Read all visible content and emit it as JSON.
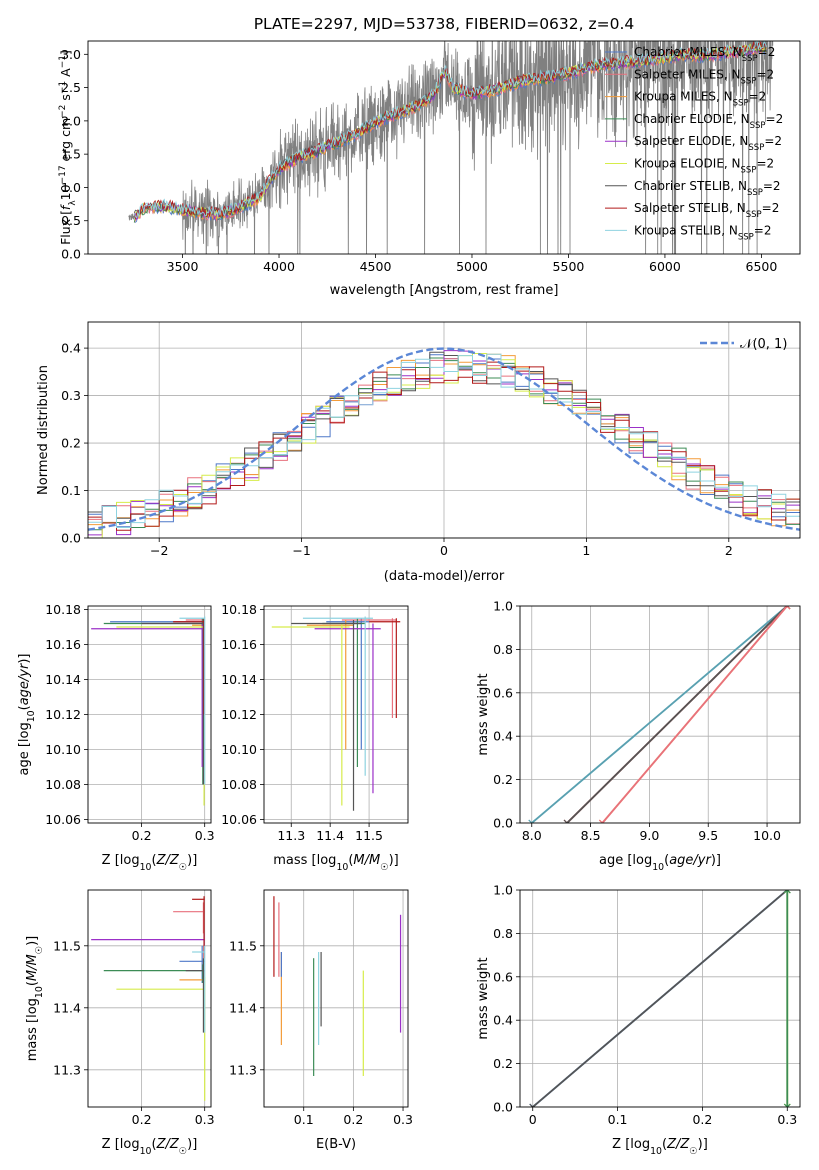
{
  "figure": {
    "title": "PLATE=2297, MJD=53738, FIBERID=0632, z=0.4"
  },
  "series_legend": [
    {
      "label": "Chabrier MILES, N",
      "sub": "SSP",
      "suffix": "=2",
      "color": "#4f78c8"
    },
    {
      "label": "Salpeter MILES, N",
      "sub": "SSP",
      "suffix": "=2",
      "color": "#e8717d"
    },
    {
      "label": "Kroupa MILES, N",
      "sub": "SSP",
      "suffix": "=2",
      "color": "#f39c3a"
    },
    {
      "label": "Chabrier ELODIE, N",
      "sub": "SSP",
      "suffix": "=2",
      "color": "#3c8c56"
    },
    {
      "label": "Salpeter ELODIE, N",
      "sub": "SSP",
      "suffix": "=2",
      "color": "#9b30c8"
    },
    {
      "label": "Kroupa ELODIE, N",
      "sub": "SSP",
      "suffix": "=2",
      "color": "#d6ec4a"
    },
    {
      "label": "Chabrier STELIB, N",
      "sub": "SSP",
      "suffix": "=2",
      "color": "#555555"
    },
    {
      "label": "Salpeter STELIB, N",
      "sub": "SSP",
      "suffix": "=2",
      "color": "#b21a1a"
    },
    {
      "label": "Kroupa STELIB, N",
      "sub": "SSP",
      "suffix": "=2",
      "color": "#8fd3e0"
    }
  ],
  "chart_data": [
    {
      "id": "spectrum",
      "type": "line",
      "xlabel": "wavelength [Angstrom, rest frame]",
      "ylabel": "Flux [f_λ 10^-17 erg cm^-2 s^-1 A^-1]",
      "ylabel_parts": {
        "pre": "Flux [",
        "f": "f",
        "fsub": "λ",
        "mid": "10",
        "exp1": "−17",
        "unit": " erg cm",
        "exp2": "−2",
        "unit2": " s",
        "exp3": "−1",
        "unit3": " A",
        "exp4": "−1",
        "post": "]"
      },
      "xlim": [
        3010,
        6700
      ],
      "ylim": [
        0,
        3.2
      ],
      "xticks": [
        3500,
        4000,
        4500,
        5000,
        5500,
        6000,
        6500
      ],
      "yticks": [
        "0.0",
        "0.5",
        "1.0",
        "1.5",
        "2.0",
        "2.5",
        "3.0"
      ],
      "data_color": "#808080",
      "model_anchor_x": [
        3250,
        3300,
        3400,
        3500,
        3600,
        3700,
        3800,
        3900,
        3950,
        4000,
        4100,
        4200,
        4300,
        4400,
        4500,
        4600,
        4700,
        4800,
        4860,
        4900,
        5000,
        5100,
        5200,
        5300,
        5400,
        5500,
        5600,
        5700,
        5800,
        5900,
        6000,
        6100,
        6200,
        6300,
        6400,
        6500
      ],
      "model_anchor_y": [
        0.55,
        0.68,
        0.72,
        0.66,
        0.62,
        0.6,
        0.7,
        0.85,
        1.1,
        1.28,
        1.45,
        1.55,
        1.68,
        1.8,
        1.98,
        2.1,
        2.2,
        2.38,
        2.75,
        2.5,
        2.4,
        2.45,
        2.55,
        2.62,
        2.65,
        2.72,
        2.8,
        2.85,
        2.88,
        2.9,
        2.95,
        3.0,
        2.98,
        3.02,
        3.05,
        3.1
      ]
    },
    {
      "id": "residuals",
      "type": "line",
      "xlabel": "(data-model)/error",
      "ylabel": "Normed distribution",
      "xlim": [
        -2.5,
        2.5
      ],
      "ylim": [
        0,
        0.455
      ],
      "xticks": [
        -2,
        -1,
        0,
        1,
        2
      ],
      "yticks": [
        "0.0",
        "0.1",
        "0.2",
        "0.3",
        "0.4"
      ],
      "reference_label": "𝒩(0, 1)",
      "reference_color": "#5b87d6",
      "histogram_bin_width": 0.1
    },
    {
      "id": "age-vs-Z",
      "type": "scatter",
      "xlabel": "Z [log10(Z/Z☉)]",
      "ylabel": "age  [log10(age/yr)]",
      "xlim": [
        0.115,
        0.31
      ],
      "ylim": [
        10.058,
        10.182
      ],
      "xticks": [
        0.2,
        0.3
      ],
      "yticks": [
        "10.06",
        "10.08",
        "10.10",
        "10.12",
        "10.14",
        "10.16",
        "10.18"
      ],
      "points": [
        {
          "x": 0.296,
          "xmin": 0.15,
          "xmax": 0.3,
          "y": 10.173,
          "ymin": 10.16,
          "ymax": 10.175,
          "color": "#4f78c8"
        },
        {
          "x": 0.298,
          "xmin": 0.27,
          "xmax": 0.3,
          "y": 10.174,
          "ymin": 10.1,
          "ymax": 10.175,
          "color": "#e8717d"
        },
        {
          "x": 0.299,
          "xmin": 0.28,
          "xmax": 0.3,
          "y": 10.171,
          "ymin": 10.09,
          "ymax": 10.174,
          "color": "#f39c3a"
        },
        {
          "x": 0.297,
          "xmin": 0.14,
          "xmax": 0.3,
          "y": 10.172,
          "ymin": 10.08,
          "ymax": 10.175,
          "color": "#3c8c56"
        },
        {
          "x": 0.296,
          "xmin": 0.12,
          "xmax": 0.3,
          "y": 10.169,
          "ymin": 10.09,
          "ymax": 10.172,
          "color": "#9b30c8"
        },
        {
          "x": 0.299,
          "xmin": 0.16,
          "xmax": 0.3,
          "y": 10.17,
          "ymin": 10.068,
          "ymax": 10.172,
          "color": "#d6ec4a"
        },
        {
          "x": 0.298,
          "xmin": 0.2,
          "xmax": 0.3,
          "y": 10.172,
          "ymin": 10.08,
          "ymax": 10.174,
          "color": "#555555"
        },
        {
          "x": 0.299,
          "xmin": 0.25,
          "xmax": 0.3,
          "y": 10.173,
          "ymin": 10.12,
          "ymax": 10.175,
          "color": "#b21a1a"
        },
        {
          "x": 0.3,
          "xmin": 0.26,
          "xmax": 0.3,
          "y": 10.175,
          "ymin": 10.08,
          "ymax": 10.176,
          "color": "#8fd3e0"
        }
      ]
    },
    {
      "id": "age-vs-mass",
      "type": "scatter",
      "xlabel": "mass [log10(M/M☉)]",
      "ylabel": "",
      "xlim": [
        11.23,
        11.6
      ],
      "ylim": [
        10.058,
        10.182
      ],
      "xticks": [
        11.3,
        11.4,
        11.5
      ],
      "yticks": [
        "10.06",
        "10.08",
        "10.10",
        "10.12",
        "10.14",
        "10.16",
        "10.18"
      ],
      "points": [
        {
          "x": 11.48,
          "xmin": 11.39,
          "xmax": 11.5,
          "y": 10.173,
          "ymin": 10.1,
          "ymax": 10.175,
          "color": "#4f78c8"
        },
        {
          "x": 11.56,
          "xmin": 11.43,
          "xmax": 11.57,
          "y": 10.174,
          "ymin": 10.118,
          "ymax": 10.175,
          "color": "#e8717d"
        },
        {
          "x": 11.44,
          "xmin": 11.34,
          "xmax": 11.46,
          "y": 10.171,
          "ymin": 10.1,
          "ymax": 10.174,
          "color": "#f39c3a"
        },
        {
          "x": 11.47,
          "xmin": 11.38,
          "xmax": 11.49,
          "y": 10.172,
          "ymin": 10.09,
          "ymax": 10.175,
          "color": "#3c8c56"
        },
        {
          "x": 11.51,
          "xmin": 11.36,
          "xmax": 11.53,
          "y": 10.169,
          "ymin": 10.075,
          "ymax": 10.172,
          "color": "#9b30c8"
        },
        {
          "x": 11.43,
          "xmin": 11.25,
          "xmax": 11.45,
          "y": 10.17,
          "ymin": 10.068,
          "ymax": 10.172,
          "color": "#d6ec4a"
        },
        {
          "x": 11.46,
          "xmin": 11.3,
          "xmax": 11.48,
          "y": 10.172,
          "ymin": 10.065,
          "ymax": 10.174,
          "color": "#555555"
        },
        {
          "x": 11.57,
          "xmin": 11.5,
          "xmax": 11.58,
          "y": 10.173,
          "ymin": 10.118,
          "ymax": 10.175,
          "color": "#b21a1a"
        },
        {
          "x": 11.49,
          "xmin": 11.33,
          "xmax": 11.51,
          "y": 10.175,
          "ymin": 10.085,
          "ymax": 10.176,
          "color": "#8fd3e0"
        }
      ]
    },
    {
      "id": "mass-weight-vs-age",
      "type": "line",
      "xlabel": "age  [log10(age/yr)]",
      "ylabel": "mass weight",
      "xlim": [
        7.9,
        10.28
      ],
      "ylim": [
        0,
        1.0
      ],
      "xticks": [
        8.0,
        8.5,
        9.0,
        9.5,
        10.0
      ],
      "xtick_labels": [
        "8.0",
        "8.5",
        "9.0",
        "9.5",
        "10.0"
      ],
      "yticks": [
        "0.0",
        "0.2",
        "0.4",
        "0.6",
        "0.8",
        "1.0"
      ],
      "series": [
        {
          "x": [
            8.0,
            10.17
          ],
          "y": [
            0,
            1
          ],
          "color": "#8fd3e0"
        },
        {
          "x": [
            8.0,
            10.17
          ],
          "y": [
            0,
            1
          ],
          "color": "#5aa0b0"
        },
        {
          "x": [
            8.3,
            10.17
          ],
          "y": [
            0,
            1
          ],
          "color": "#b21a1a"
        },
        {
          "x": [
            8.3,
            10.17
          ],
          "y": [
            0,
            1
          ],
          "color": "#555555"
        },
        {
          "x": [
            8.6,
            10.17
          ],
          "y": [
            0,
            1
          ],
          "color": "#f39c3a"
        },
        {
          "x": [
            8.6,
            10.17
          ],
          "y": [
            0,
            1
          ],
          "color": "#e8717d"
        }
      ]
    },
    {
      "id": "mass-vs-Z",
      "type": "scatter",
      "xlabel": "Z [log10(Z/Z☉)]",
      "ylabel": "mass [log10(M/M☉)]",
      "xlim": [
        0.115,
        0.31
      ],
      "ylim": [
        11.24,
        11.59
      ],
      "xticks": [
        0.2,
        0.3
      ],
      "yticks": [
        "11.3",
        "11.4",
        "11.5"
      ],
      "points": [
        {
          "x": 0.296,
          "xmin": 0.26,
          "xmax": 0.3,
          "y": 11.475,
          "ymin": 11.44,
          "ymax": 11.5,
          "color": "#4f78c8"
        },
        {
          "x": 0.298,
          "xmin": 0.25,
          "xmax": 0.3,
          "y": 11.555,
          "ymin": 11.52,
          "ymax": 11.57,
          "color": "#e8717d"
        },
        {
          "x": 0.299,
          "xmin": 0.26,
          "xmax": 0.3,
          "y": 11.445,
          "ymin": 11.42,
          "ymax": 11.46,
          "color": "#f39c3a"
        },
        {
          "x": 0.297,
          "xmin": 0.14,
          "xmax": 0.3,
          "y": 11.46,
          "ymin": 11.44,
          "ymax": 11.47,
          "color": "#3c8c56"
        },
        {
          "x": 0.299,
          "xmin": 0.12,
          "xmax": 0.3,
          "y": 11.51,
          "ymin": 11.49,
          "ymax": 11.52,
          "color": "#9b30c8"
        },
        {
          "x": 0.3,
          "xmin": 0.16,
          "xmax": 0.3,
          "y": 11.43,
          "ymin": 11.25,
          "ymax": 11.45,
          "color": "#d6ec4a"
        },
        {
          "x": 0.298,
          "xmin": 0.27,
          "xmax": 0.3,
          "y": 11.46,
          "ymin": 11.36,
          "ymax": 11.48,
          "color": "#555555"
        },
        {
          "x": 0.299,
          "xmin": 0.28,
          "xmax": 0.3,
          "y": 11.575,
          "ymin": 11.48,
          "ymax": 11.58,
          "color": "#b21a1a"
        },
        {
          "x": 0.3,
          "xmin": 0.28,
          "xmax": 0.3,
          "y": 11.49,
          "ymin": 11.36,
          "ymax": 11.5,
          "color": "#8fd3e0"
        }
      ]
    },
    {
      "id": "mass-vs-EBV",
      "type": "scatter",
      "xlabel": "E(B-V)",
      "ylabel": "",
      "xlim": [
        0.02,
        0.31
      ],
      "ylim": [
        11.24,
        11.59
      ],
      "xticks": [
        0.1,
        0.2,
        0.3
      ],
      "yticks": [
        "11.3",
        "11.4",
        "11.5"
      ],
      "points": [
        {
          "x": 0.04,
          "ymin": 11.45,
          "ymax": 11.58,
          "color": "#b21a1a"
        },
        {
          "x": 0.05,
          "ymin": 11.45,
          "ymax": 11.57,
          "color": "#e8717d"
        },
        {
          "x": 0.055,
          "ymin": 11.34,
          "ymax": 11.49,
          "color": "#f39c3a"
        },
        {
          "x": 0.055,
          "ymin": 11.45,
          "ymax": 11.49,
          "color": "#4f78c8"
        },
        {
          "x": 0.12,
          "ymin": 11.29,
          "ymax": 11.48,
          "color": "#3c8c56"
        },
        {
          "x": 0.13,
          "ymin": 11.34,
          "ymax": 11.49,
          "color": "#8fd3e0"
        },
        {
          "x": 0.135,
          "ymin": 11.37,
          "ymax": 11.49,
          "color": "#555555"
        },
        {
          "x": 0.22,
          "ymin": 11.29,
          "ymax": 11.46,
          "color": "#d6ec4a"
        },
        {
          "x": 0.295,
          "ymin": 11.36,
          "ymax": 11.55,
          "color": "#9b30c8"
        }
      ]
    },
    {
      "id": "mass-weight-vs-Z",
      "type": "line",
      "xlabel": "Z [log10(Z/Z☉)]",
      "ylabel": "mass weight",
      "xlim": [
        -0.015,
        0.315
      ],
      "ylim": [
        0,
        1.0
      ],
      "xticks": [
        0.0,
        0.1,
        0.2,
        0.3
      ],
      "yticks": [
        "0.0",
        "0.2",
        "0.4",
        "0.6",
        "0.8",
        "1.0"
      ],
      "series": [
        {
          "x": [
            0.0,
            0.3
          ],
          "y": [
            0,
            1
          ],
          "color": "#8fd3e0"
        },
        {
          "x": [
            0.0,
            0.3
          ],
          "y": [
            0,
            1
          ],
          "color": "#4f78c8"
        },
        {
          "x": [
            0.0,
            0.3
          ],
          "y": [
            0,
            1
          ],
          "color": "#555555"
        },
        {
          "x": [
            0.3,
            0.3
          ],
          "y": [
            0,
            1
          ],
          "color": "#d6ec4a"
        },
        {
          "x": [
            0.3,
            0.3
          ],
          "y": [
            0,
            1
          ],
          "color": "#3c8c56"
        }
      ]
    }
  ]
}
